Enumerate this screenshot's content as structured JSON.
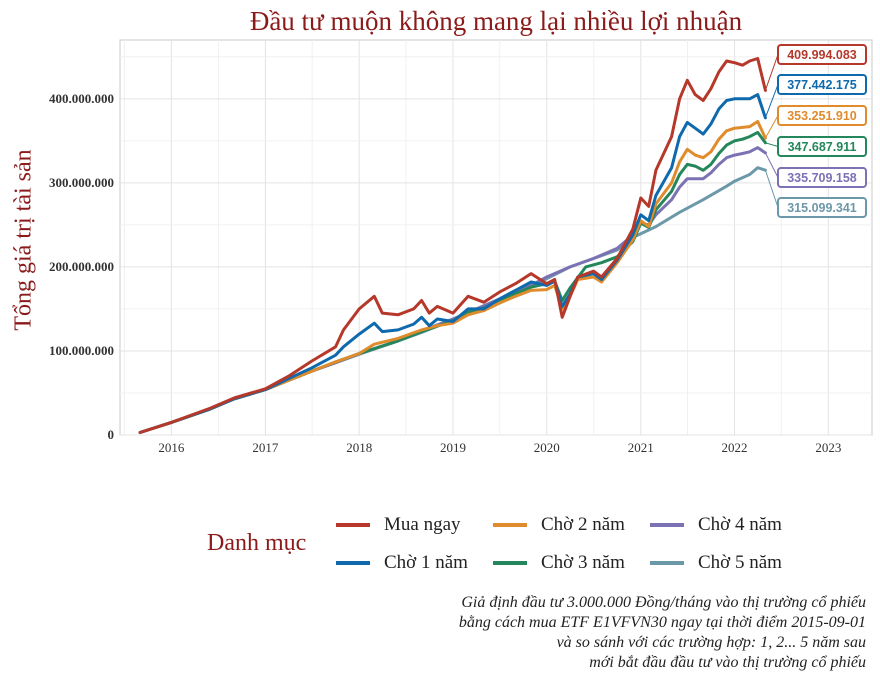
{
  "chart_data": {
    "type": "line",
    "title": "Đầu tư muộn không mang lại nhiều lợi nhuận",
    "ylabel": "Tổng giá trị tài sản",
    "xlabel": "",
    "x_ticks": [
      "2016",
      "2017",
      "2018",
      "2019",
      "2020",
      "2021",
      "2022",
      "2023"
    ],
    "y_ticks": [
      "0",
      "100.000.000",
      "200.000.000",
      "300.000.000",
      "400.000.000"
    ],
    "ylim": [
      0,
      470000000
    ],
    "xlim": [
      "2015-06-15",
      "2023-06-20"
    ],
    "grid": true,
    "legend_title": "Danh mục",
    "legend_position": "bottom",
    "caption": [
      "Giả định đầu tư 3.000.000 Đồng/tháng vào thị trường cổ phiếu",
      "bằng cách mua ETF E1VFVN30 ngay tại thời điểm 2015-09-01",
      "và so sánh với các trường hợp: 1, 2... 5 năm sau",
      "mới bắt đầu đầu tư vào thị trường cổ phiếu"
    ],
    "series": [
      {
        "name": "Mua ngay",
        "color": "#b5382a",
        "end_label": "409.994.083",
        "x": [
          "2015-09-01",
          "2016-01-01",
          "2016-06-01",
          "2016-09-01",
          "2017-01-01",
          "2017-04-01",
          "2017-07-01",
          "2017-10-01",
          "2017-11-01",
          "2018-01-01",
          "2018-03-01",
          "2018-04-01",
          "2018-06-01",
          "2018-08-01",
          "2018-09-01",
          "2018-10-01",
          "2018-11-01",
          "2019-01-01",
          "2019-03-01",
          "2019-05-01",
          "2019-07-01",
          "2019-09-01",
          "2019-11-01",
          "2020-01-01",
          "2020-02-01",
          "2020-03-01",
          "2020-04-01",
          "2020-05-01",
          "2020-07-01",
          "2020-08-01",
          "2020-10-01",
          "2020-12-01",
          "2021-01-01",
          "2021-02-01",
          "2021-03-01",
          "2021-05-01",
          "2021-06-01",
          "2021-07-01",
          "2021-08-01",
          "2021-09-01",
          "2021-10-01",
          "2021-11-01",
          "2021-12-01",
          "2022-01-01",
          "2022-02-01",
          "2022-03-01",
          "2022-04-01",
          "2022-05-01"
        ],
        "y": [
          3000000,
          15000000,
          32000000,
          44000000,
          55000000,
          70000000,
          88000000,
          105000000,
          125000000,
          150000000,
          165000000,
          145000000,
          143000000,
          150000000,
          160000000,
          145000000,
          153000000,
          145000000,
          165000000,
          158000000,
          170000000,
          180000000,
          192000000,
          180000000,
          185000000,
          140000000,
          165000000,
          188000000,
          195000000,
          188000000,
          210000000,
          245000000,
          282000000,
          272000000,
          315000000,
          355000000,
          400000000,
          422000000,
          405000000,
          398000000,
          412000000,
          432000000,
          445000000,
          443000000,
          440000000,
          445000000,
          448000000,
          409994083
        ]
      },
      {
        "name": "Chờ 1 năm",
        "color": "#0f6aad",
        "end_label": "377.442.175",
        "x": [
          "2015-09-01",
          "2016-01-01",
          "2016-06-01",
          "2016-09-01",
          "2017-01-01",
          "2017-04-01",
          "2017-07-01",
          "2017-10-01",
          "2017-11-01",
          "2018-01-01",
          "2018-03-01",
          "2018-04-01",
          "2018-06-01",
          "2018-08-01",
          "2018-09-01",
          "2018-10-01",
          "2018-11-01",
          "2019-01-01",
          "2019-03-01",
          "2019-05-01",
          "2019-07-01",
          "2019-09-01",
          "2019-11-01",
          "2020-01-01",
          "2020-02-01",
          "2020-03-01",
          "2020-04-01",
          "2020-05-01",
          "2020-07-01",
          "2020-08-01",
          "2020-10-01",
          "2020-12-01",
          "2021-01-01",
          "2021-02-01",
          "2021-03-01",
          "2021-05-01",
          "2021-06-01",
          "2021-07-01",
          "2021-08-01",
          "2021-09-01",
          "2021-10-01",
          "2021-11-01",
          "2021-12-01",
          "2022-01-01",
          "2022-02-01",
          "2022-03-01",
          "2022-04-01",
          "2022-05-01"
        ],
        "y": [
          3000000,
          15000000,
          31000000,
          43000000,
          54000000,
          67000000,
          80000000,
          95000000,
          105000000,
          120000000,
          133000000,
          123000000,
          125000000,
          132000000,
          140000000,
          130000000,
          138000000,
          135000000,
          150000000,
          150000000,
          162000000,
          172000000,
          182000000,
          178000000,
          183000000,
          153000000,
          168000000,
          188000000,
          192000000,
          185000000,
          208000000,
          238000000,
          262000000,
          255000000,
          285000000,
          318000000,
          355000000,
          372000000,
          365000000,
          358000000,
          370000000,
          388000000,
          398000000,
          400000000,
          400000000,
          400000000,
          405000000,
          377442175
        ]
      },
      {
        "name": "Chờ 2 năm",
        "color": "#e08b2c",
        "end_label": "353.251.910",
        "x": [
          "2015-09-01",
          "2016-01-01",
          "2016-06-01",
          "2016-09-01",
          "2017-01-01",
          "2017-04-01",
          "2017-07-01",
          "2017-10-01",
          "2018-01-01",
          "2018-03-01",
          "2018-06-01",
          "2018-09-01",
          "2018-11-01",
          "2019-01-01",
          "2019-03-01",
          "2019-05-01",
          "2019-07-01",
          "2019-09-01",
          "2019-11-01",
          "2020-01-01",
          "2020-02-01",
          "2020-03-01",
          "2020-04-01",
          "2020-05-01",
          "2020-07-01",
          "2020-08-01",
          "2020-10-01",
          "2020-12-01",
          "2021-01-01",
          "2021-02-01",
          "2021-03-01",
          "2021-05-01",
          "2021-06-01",
          "2021-07-01",
          "2021-08-01",
          "2021-09-01",
          "2021-10-01",
          "2021-11-01",
          "2021-12-01",
          "2022-01-01",
          "2022-02-01",
          "2022-03-01",
          "2022-04-01",
          "2022-05-01"
        ],
        "y": [
          3000000,
          15000000,
          31000000,
          43000000,
          54000000,
          65000000,
          76000000,
          87000000,
          97000000,
          108000000,
          115000000,
          125000000,
          130000000,
          133000000,
          143000000,
          148000000,
          157000000,
          165000000,
          172000000,
          173000000,
          178000000,
          150000000,
          165000000,
          185000000,
          188000000,
          182000000,
          205000000,
          232000000,
          255000000,
          248000000,
          275000000,
          300000000,
          325000000,
          340000000,
          333000000,
          330000000,
          337000000,
          352000000,
          362000000,
          365000000,
          366000000,
          367000000,
          373000000,
          353251910
        ]
      },
      {
        "name": "Chờ 3 năm",
        "color": "#23875b",
        "end_label": "347.687.911",
        "x": [
          "2015-09-01",
          "2016-01-01",
          "2016-06-01",
          "2016-09-01",
          "2017-01-01",
          "2017-04-01",
          "2017-07-01",
          "2017-10-01",
          "2018-01-01",
          "2018-06-01",
          "2018-09-01",
          "2019-01-01",
          "2019-03-01",
          "2019-05-01",
          "2019-07-01",
          "2019-09-01",
          "2019-11-01",
          "2020-01-01",
          "2020-02-01",
          "2020-03-01",
          "2020-04-01",
          "2020-06-01",
          "2020-08-01",
          "2020-10-01",
          "2020-12-01",
          "2021-01-01",
          "2021-02-01",
          "2021-03-01",
          "2021-05-01",
          "2021-06-01",
          "2021-07-01",
          "2021-08-01",
          "2021-09-01",
          "2021-10-01",
          "2021-11-01",
          "2021-12-01",
          "2022-01-01",
          "2022-02-01",
          "2022-03-01",
          "2022-04-01",
          "2022-05-01"
        ],
        "y": [
          3000000,
          15000000,
          31000000,
          43000000,
          54000000,
          65000000,
          76000000,
          87000000,
          97000000,
          112000000,
          123000000,
          136000000,
          146000000,
          151000000,
          160000000,
          168000000,
          176000000,
          180000000,
          183000000,
          160000000,
          175000000,
          200000000,
          205000000,
          212000000,
          230000000,
          252000000,
          247000000,
          268000000,
          290000000,
          310000000,
          322000000,
          320000000,
          315000000,
          322000000,
          335000000,
          345000000,
          350000000,
          352000000,
          355000000,
          360000000,
          347687911
        ]
      },
      {
        "name": "Chờ 4 năm",
        "color": "#7b72b4",
        "end_label": "335.709.158",
        "x": [
          "2015-09-01",
          "2016-01-01",
          "2016-06-01",
          "2016-09-01",
          "2017-01-01",
          "2017-04-01",
          "2017-07-01",
          "2017-10-01",
          "2018-01-01",
          "2018-06-01",
          "2018-09-01",
          "2019-01-01",
          "2019-06-01",
          "2019-09-01",
          "2019-11-01",
          "2020-01-01",
          "2020-04-01",
          "2020-07-01",
          "2020-10-01",
          "2020-12-01",
          "2021-01-01",
          "2021-02-01",
          "2021-03-01",
          "2021-05-01",
          "2021-06-01",
          "2021-07-01",
          "2021-08-01",
          "2021-09-01",
          "2021-10-01",
          "2021-11-01",
          "2021-12-01",
          "2022-01-01",
          "2022-02-01",
          "2022-03-01",
          "2022-04-01",
          "2022-05-01"
        ],
        "y": [
          3000000,
          15000000,
          31000000,
          43000000,
          54000000,
          65000000,
          76000000,
          86000000,
          97000000,
          112000000,
          124000000,
          138000000,
          158000000,
          170000000,
          178000000,
          188000000,
          200000000,
          210000000,
          222000000,
          238000000,
          252000000,
          250000000,
          262000000,
          280000000,
          295000000,
          305000000,
          305000000,
          305000000,
          312000000,
          322000000,
          330000000,
          333000000,
          335000000,
          337000000,
          342000000,
          335709158
        ]
      },
      {
        "name": "Chờ 5 năm",
        "color": "#6c99a9",
        "end_label": "315.099.341",
        "x": [
          "2015-09-01",
          "2016-01-01",
          "2016-06-01",
          "2016-09-01",
          "2017-01-01",
          "2017-04-01",
          "2017-07-01",
          "2017-10-01",
          "2018-01-01",
          "2018-06-01",
          "2018-09-01",
          "2019-01-01",
          "2019-06-01",
          "2019-09-01",
          "2020-01-01",
          "2020-04-01",
          "2020-07-01",
          "2020-10-01",
          "2020-12-01",
          "2021-03-01",
          "2021-06-01",
          "2021-09-01",
          "2021-12-01",
          "2022-01-01",
          "2022-03-01",
          "2022-04-01",
          "2022-05-01"
        ],
        "y": [
          3000000,
          15000000,
          31000000,
          43000000,
          54000000,
          65000000,
          76000000,
          86000000,
          96000000,
          112000000,
          122000000,
          137000000,
          155000000,
          167000000,
          186000000,
          200000000,
          210000000,
          220000000,
          235000000,
          248000000,
          265000000,
          280000000,
          296000000,
          302000000,
          310000000,
          318000000,
          315099341
        ]
      }
    ]
  }
}
